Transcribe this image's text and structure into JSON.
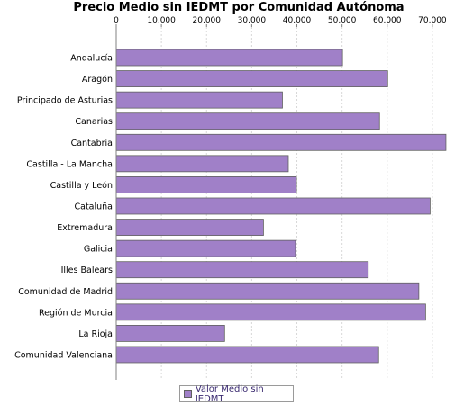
{
  "colors": {
    "bar_fill": "#a080c8",
    "bar_stroke": "#606060",
    "grid": "#d8d8d8",
    "axis": "#808080"
  },
  "chart_data": {
    "type": "bar",
    "orientation": "horizontal",
    "title": "Precio Medio sin IEDMT por Comunidad Autónoma",
    "x_axis_position": "top",
    "xlim": [
      0,
      77000
    ],
    "x_ticks": [
      0,
      10000,
      20000,
      30000,
      40000,
      50000,
      60000,
      70000
    ],
    "x_tick_labels": [
      "0",
      "10.000",
      "20.000",
      "30.000",
      "40.000",
      "50.000",
      "60.000",
      "70.000"
    ],
    "grid": true,
    "legend_position": "bottom",
    "categories": [
      "Andalucía",
      "Aragón",
      "Principado de Asturias",
      "Canarias",
      "Cantabria",
      "Castilla - La Mancha",
      "Castilla y León",
      "Cataluña",
      "Extremadura",
      "Galicia",
      "Illes Balears",
      "Comunidad de Madrid",
      "Región de Murcia",
      "La Rioja",
      "Comunidad Valenciana"
    ],
    "series": [
      {
        "name": "Valor Medio sin IEDMT",
        "values": [
          50100,
          60100,
          36800,
          58300,
          73000,
          38100,
          39900,
          69500,
          32600,
          39700,
          55800,
          67000,
          68500,
          24000,
          58100
        ]
      }
    ]
  }
}
